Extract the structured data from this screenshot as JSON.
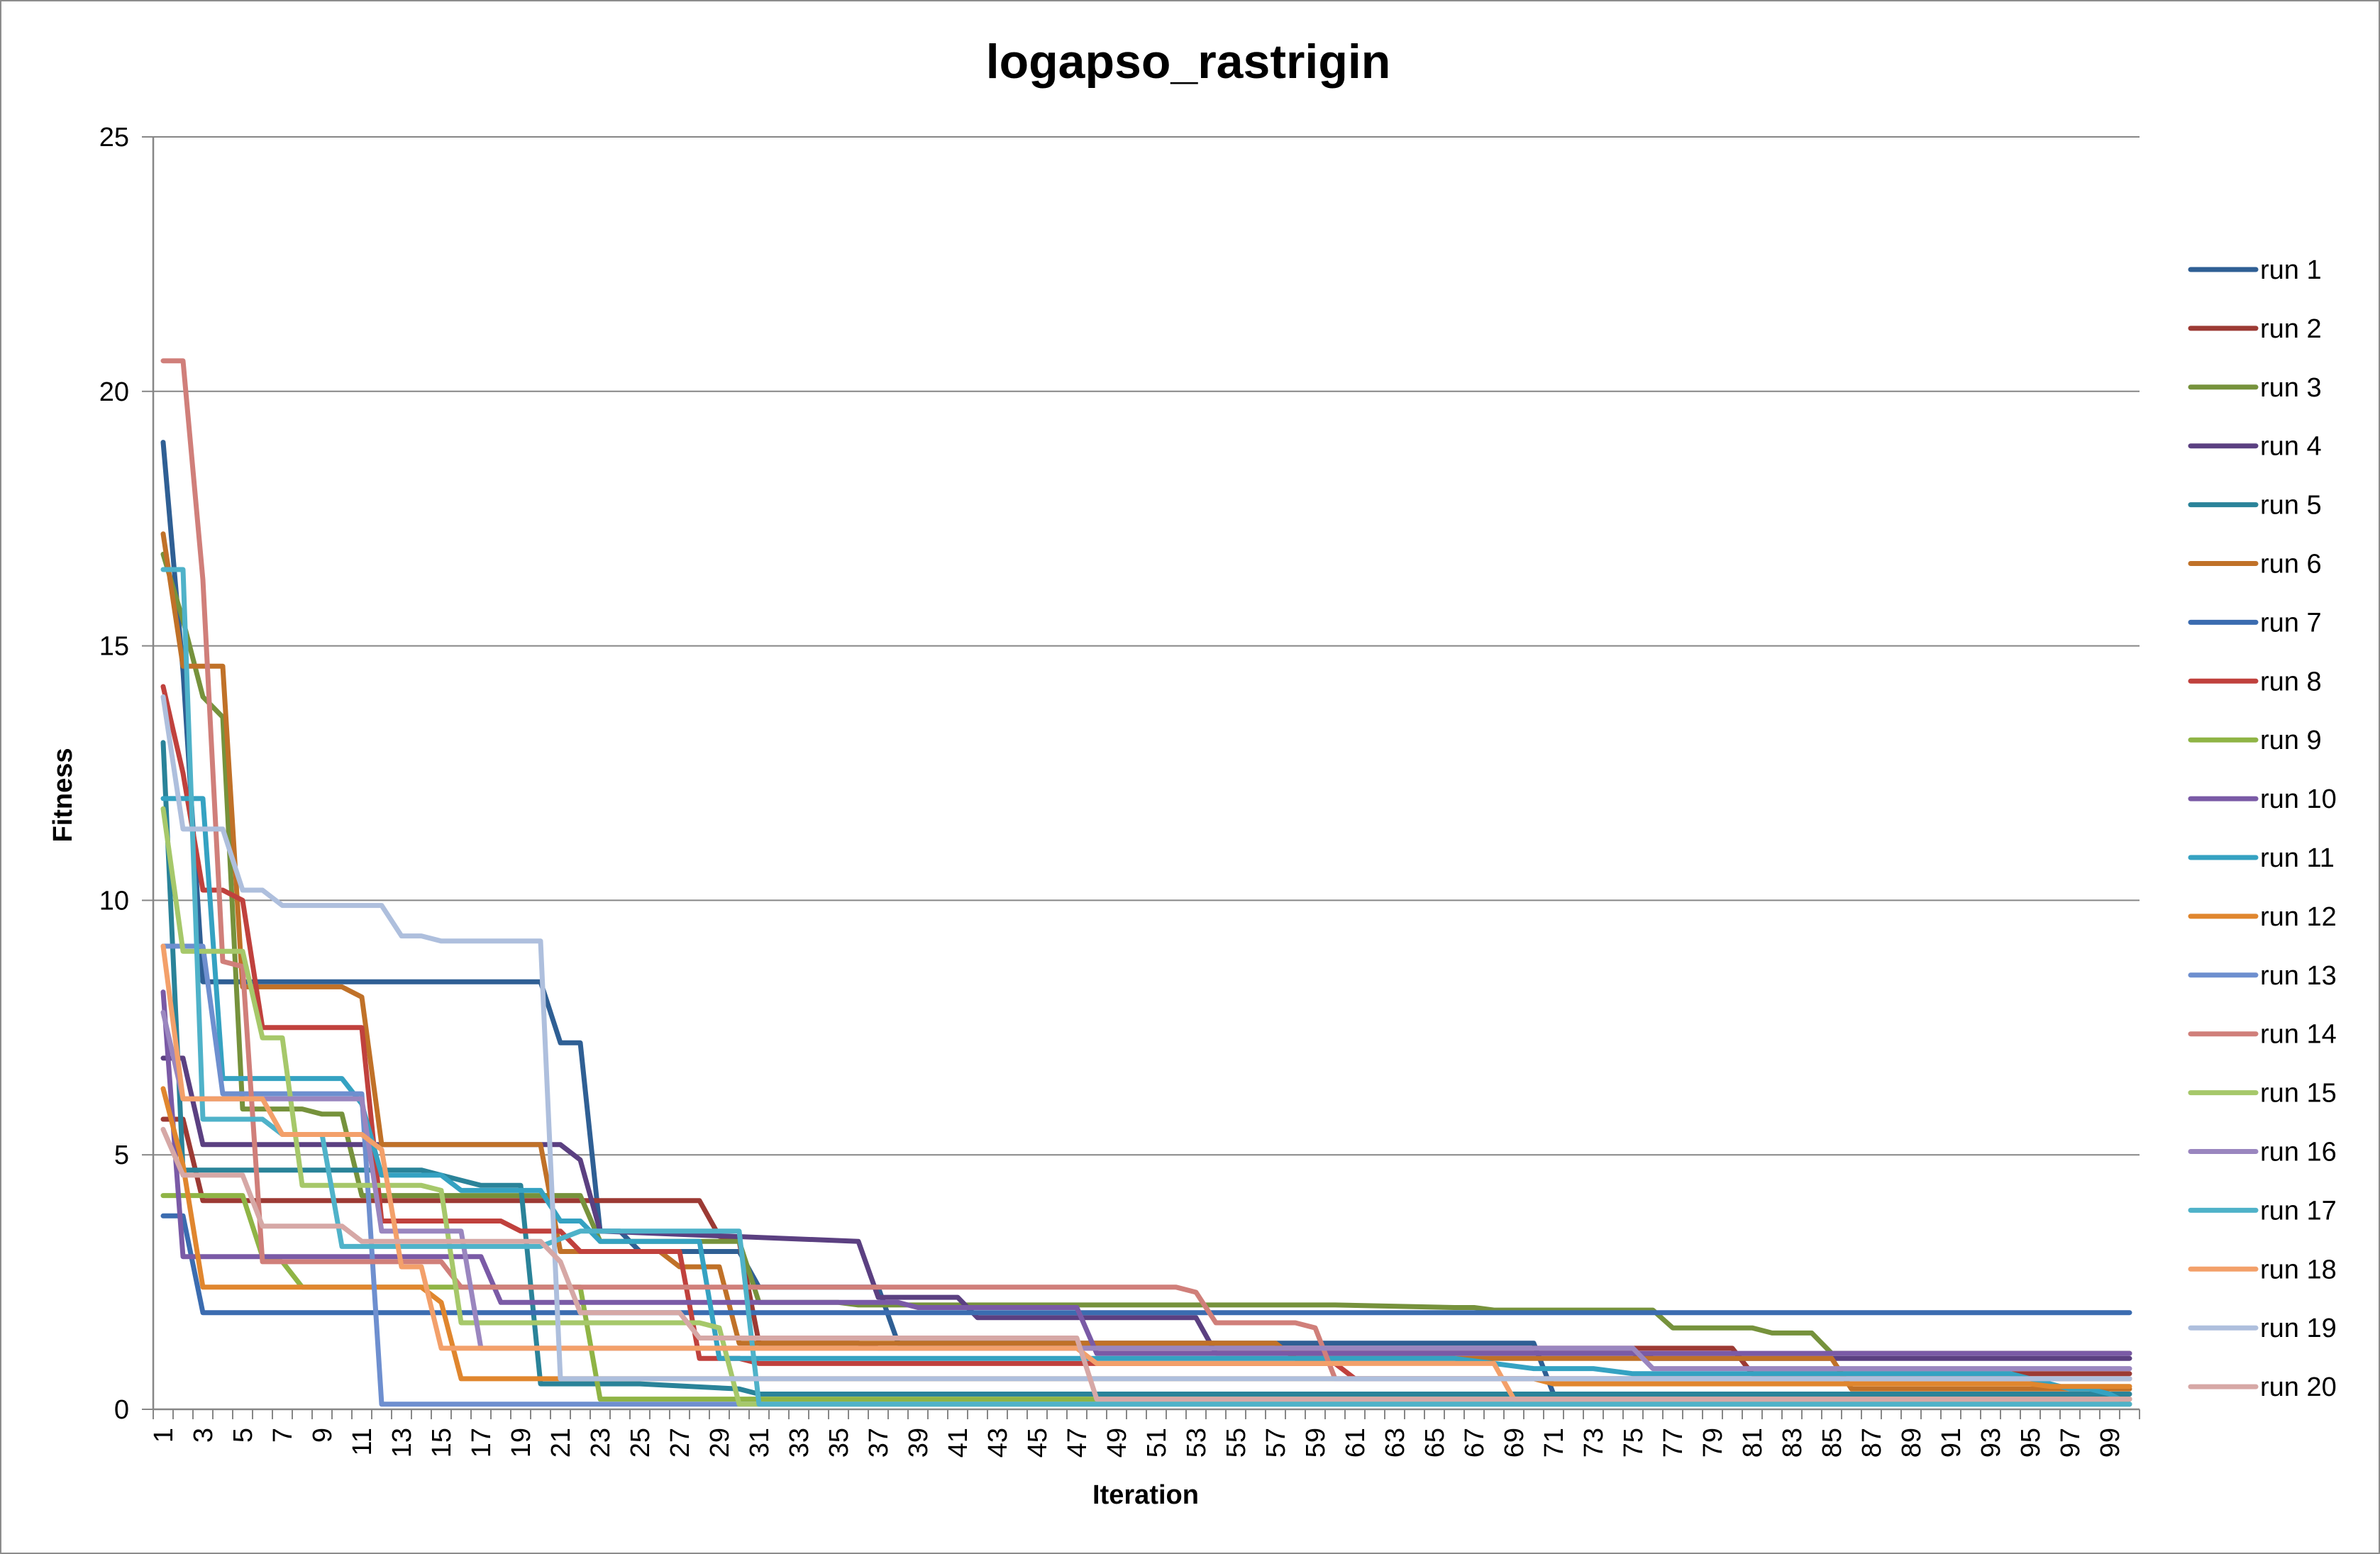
{
  "chart_data": {
    "type": "line",
    "title": "logapso_rastrigin",
    "xlabel": "Iteration",
    "ylabel": "Fitness",
    "ylim": [
      0,
      25
    ],
    "y_ticks": [
      "0",
      "5",
      "10",
      "15",
      "20",
      "25"
    ],
    "x_range": [
      1,
      100
    ],
    "x_tick_labels": [
      "1",
      "3",
      "5",
      "7",
      "9",
      "11",
      "13",
      "15",
      "17",
      "19",
      "21",
      "23",
      "25",
      "27",
      "29",
      "31",
      "33",
      "35",
      "37",
      "39",
      "41",
      "43",
      "45",
      "47",
      "49",
      "51",
      "53",
      "55",
      "57",
      "59",
      "61",
      "63",
      "65",
      "67",
      "69",
      "71",
      "73",
      "75",
      "77",
      "79",
      "81",
      "83",
      "85",
      "87",
      "89",
      "91",
      "93",
      "95",
      "97",
      "99"
    ],
    "grid": "horizontal",
    "legend_position": "right",
    "series": [
      {
        "name": "run 1",
        "color": "#2f5f94",
        "points": [
          [
            1,
            19.0
          ],
          [
            2,
            14.5
          ],
          [
            3,
            8.4
          ],
          [
            20,
            8.4
          ],
          [
            21,
            7.2
          ],
          [
            22,
            7.2
          ],
          [
            23,
            3.5
          ],
          [
            24,
            3.5
          ],
          [
            25,
            3.1
          ],
          [
            30,
            3.1
          ],
          [
            31,
            2.4
          ],
          [
            37,
            2.4
          ],
          [
            38,
            1.3
          ],
          [
            70,
            1.3
          ],
          [
            71,
            0.3
          ],
          [
            100,
            0.2
          ]
        ]
      },
      {
        "name": "run 2",
        "color": "#9c3a34",
        "points": [
          [
            1,
            5.7
          ],
          [
            2,
            5.7
          ],
          [
            3,
            4.1
          ],
          [
            28,
            4.1
          ],
          [
            29,
            3.4
          ],
          [
            30,
            3.3
          ],
          [
            31,
            1.3
          ],
          [
            36,
            1.3
          ],
          [
            37,
            1.2
          ],
          [
            80,
            1.2
          ],
          [
            81,
            0.7
          ],
          [
            100,
            0.7
          ]
        ]
      },
      {
        "name": "run 3",
        "color": "#76923c",
        "points": [
          [
            1,
            16.8
          ],
          [
            2,
            15.5
          ],
          [
            3,
            14.0
          ],
          [
            4,
            13.6
          ],
          [
            5,
            5.9
          ],
          [
            8,
            5.9
          ],
          [
            9,
            5.8
          ],
          [
            10,
            5.8
          ],
          [
            11,
            4.2
          ],
          [
            22,
            4.2
          ],
          [
            23,
            3.3
          ],
          [
            30,
            3.3
          ],
          [
            31,
            2.1
          ],
          [
            35,
            2.1
          ],
          [
            36,
            2.05
          ],
          [
            60,
            2.05
          ],
          [
            66,
            2.0
          ],
          [
            67,
            2.0
          ],
          [
            68,
            1.95
          ],
          [
            76,
            1.95
          ],
          [
            77,
            1.6
          ],
          [
            81,
            1.6
          ],
          [
            82,
            1.5
          ],
          [
            84,
            1.5
          ],
          [
            85,
            1.1
          ],
          [
            100,
            1.1
          ]
        ]
      },
      {
        "name": "run 4",
        "color": "#5b4081",
        "points": [
          [
            1,
            6.9
          ],
          [
            2,
            6.9
          ],
          [
            3,
            5.2
          ],
          [
            21,
            5.2
          ],
          [
            22,
            4.9
          ],
          [
            23,
            3.5
          ],
          [
            36,
            3.3
          ],
          [
            37,
            2.2
          ],
          [
            41,
            2.2
          ],
          [
            42,
            1.8
          ],
          [
            53,
            1.8
          ],
          [
            54,
            1.1
          ],
          [
            75,
            1.1
          ],
          [
            76,
            1.0
          ],
          [
            100,
            1.0
          ]
        ]
      },
      {
        "name": "run 5",
        "color": "#2a8399",
        "points": [
          [
            1,
            13.1
          ],
          [
            2,
            4.7
          ],
          [
            14,
            4.7
          ],
          [
            16,
            4.5
          ],
          [
            17,
            4.4
          ],
          [
            19,
            4.4
          ],
          [
            20,
            0.5
          ],
          [
            25,
            0.5
          ],
          [
            30,
            0.4
          ],
          [
            31,
            0.3
          ],
          [
            100,
            0.3
          ]
        ]
      },
      {
        "name": "run 6",
        "color": "#c07128",
        "points": [
          [
            1,
            17.2
          ],
          [
            2,
            14.6
          ],
          [
            4,
            14.6
          ],
          [
            5,
            8.3
          ],
          [
            10,
            8.3
          ],
          [
            11,
            8.1
          ],
          [
            12,
            5.2
          ],
          [
            19,
            5.2
          ],
          [
            20,
            5.2
          ],
          [
            21,
            3.1
          ],
          [
            26,
            3.1
          ],
          [
            27,
            2.8
          ],
          [
            29,
            2.8
          ],
          [
            30,
            1.3
          ],
          [
            57,
            1.3
          ],
          [
            58,
            1.0
          ],
          [
            85,
            1.0
          ],
          [
            86,
            0.4
          ],
          [
            100,
            0.4
          ]
        ]
      },
      {
        "name": "run 7",
        "color": "#3b6cb0",
        "points": [
          [
            1,
            3.8
          ],
          [
            2,
            3.8
          ],
          [
            3,
            1.9
          ],
          [
            100,
            1.9
          ]
        ]
      },
      {
        "name": "run 8",
        "color": "#c0413d",
        "points": [
          [
            1,
            14.2
          ],
          [
            2,
            12.5
          ],
          [
            3,
            10.2
          ],
          [
            4,
            10.2
          ],
          [
            5,
            10.0
          ],
          [
            6,
            7.5
          ],
          [
            10,
            7.5
          ],
          [
            11,
            7.5
          ],
          [
            12,
            3.7
          ],
          [
            18,
            3.7
          ],
          [
            19,
            3.5
          ],
          [
            21,
            3.5
          ],
          [
            22,
            3.1
          ],
          [
            27,
            3.1
          ],
          [
            28,
            1.0
          ],
          [
            30,
            1.0
          ],
          [
            31,
            0.9
          ],
          [
            60,
            0.9
          ],
          [
            61,
            0.6
          ],
          [
            100,
            0.6
          ]
        ]
      },
      {
        "name": "run 9",
        "color": "#8fb445",
        "points": [
          [
            1,
            4.2
          ],
          [
            4,
            4.2
          ],
          [
            5,
            4.2
          ],
          [
            6,
            3.0
          ],
          [
            7,
            2.9
          ],
          [
            8,
            2.4
          ],
          [
            22,
            2.4
          ],
          [
            23,
            0.2
          ],
          [
            100,
            0.2
          ]
        ]
      },
      {
        "name": "run 10",
        "color": "#7a5aa6",
        "points": [
          [
            1,
            8.2
          ],
          [
            2,
            3.0
          ],
          [
            17,
            3.0
          ],
          [
            18,
            2.1
          ],
          [
            38,
            2.1
          ],
          [
            39,
            2.0
          ],
          [
            47,
            2.0
          ],
          [
            48,
            1.1
          ],
          [
            100,
            1.1
          ]
        ]
      },
      {
        "name": "run 11",
        "color": "#35a2c2",
        "points": [
          [
            1,
            12.0
          ],
          [
            3,
            12.0
          ],
          [
            4,
            6.5
          ],
          [
            10,
            6.5
          ],
          [
            11,
            6.0
          ],
          [
            12,
            4.6
          ],
          [
            15,
            4.6
          ],
          [
            16,
            4.3
          ],
          [
            19,
            4.3
          ],
          [
            20,
            4.3
          ],
          [
            21,
            3.7
          ],
          [
            22,
            3.7
          ],
          [
            23,
            3.3
          ],
          [
            28,
            3.3
          ],
          [
            29,
            1.0
          ],
          [
            66,
            1.0
          ],
          [
            68,
            0.9
          ],
          [
            70,
            0.8
          ],
          [
            73,
            0.8
          ],
          [
            75,
            0.7
          ],
          [
            94,
            0.7
          ],
          [
            97,
            0.4
          ],
          [
            98,
            0.4
          ],
          [
            99,
            0.3
          ],
          [
            100,
            0.1
          ]
        ]
      },
      {
        "name": "run 12",
        "color": "#e0862e",
        "points": [
          [
            1,
            6.3
          ],
          [
            2,
            4.8
          ],
          [
            3,
            2.4
          ],
          [
            14,
            2.4
          ],
          [
            15,
            2.1
          ],
          [
            16,
            0.6
          ],
          [
            70,
            0.6
          ],
          [
            71,
            0.5
          ],
          [
            95,
            0.5
          ],
          [
            96,
            0.45
          ],
          [
            100,
            0.45
          ]
        ]
      },
      {
        "name": "run 13",
        "color": "#6e8fcf",
        "points": [
          [
            1,
            9.1
          ],
          [
            3,
            9.1
          ],
          [
            4,
            6.2
          ],
          [
            11,
            6.2
          ],
          [
            12,
            0.1
          ],
          [
            100,
            0.1
          ]
        ]
      },
      {
        "name": "run 14",
        "color": "#d07f7a",
        "points": [
          [
            1,
            20.6
          ],
          [
            2,
            20.6
          ],
          [
            3,
            16.3
          ],
          [
            4,
            8.8
          ],
          [
            5,
            8.7
          ],
          [
            6,
            2.9
          ],
          [
            14,
            2.9
          ],
          [
            15,
            2.9
          ],
          [
            16,
            2.4
          ],
          [
            52,
            2.4
          ],
          [
            53,
            2.3
          ],
          [
            54,
            1.7
          ],
          [
            58,
            1.7
          ],
          [
            59,
            1.6
          ],
          [
            60,
            0.6
          ],
          [
            100,
            0.6
          ]
        ]
      },
      {
        "name": "run 15",
        "color": "#a6c86a",
        "points": [
          [
            1,
            11.8
          ],
          [
            2,
            9.0
          ],
          [
            5,
            9.0
          ],
          [
            6,
            7.3
          ],
          [
            7,
            7.3
          ],
          [
            8,
            4.4
          ],
          [
            14,
            4.4
          ],
          [
            15,
            4.3
          ],
          [
            16,
            1.7
          ],
          [
            28,
            1.7
          ],
          [
            29,
            1.6
          ],
          [
            30,
            0.1
          ],
          [
            100,
            0.1
          ]
        ]
      },
      {
        "name": "run 16",
        "color": "#9a86bf",
        "points": [
          [
            1,
            7.8
          ],
          [
            2,
            6.1
          ],
          [
            11,
            6.1
          ],
          [
            12,
            3.5
          ],
          [
            16,
            3.5
          ],
          [
            17,
            1.2
          ],
          [
            75,
            1.2
          ],
          [
            76,
            0.8
          ],
          [
            100,
            0.8
          ]
        ]
      },
      {
        "name": "run 17",
        "color": "#4fb2c9",
        "points": [
          [
            1,
            16.5
          ],
          [
            2,
            16.5
          ],
          [
            3,
            5.7
          ],
          [
            6,
            5.7
          ],
          [
            7,
            5.4
          ],
          [
            9,
            5.4
          ],
          [
            10,
            3.2
          ],
          [
            20,
            3.2
          ],
          [
            22,
            3.5
          ],
          [
            28,
            3.5
          ],
          [
            30,
            3.5
          ],
          [
            31,
            0.1
          ],
          [
            100,
            0.1
          ]
        ]
      },
      {
        "name": "run 18",
        "color": "#f3a06a",
        "points": [
          [
            1,
            9.1
          ],
          [
            2,
            6.1
          ],
          [
            6,
            6.1
          ],
          [
            7,
            5.4
          ],
          [
            11,
            5.4
          ],
          [
            12,
            5.1
          ],
          [
            13,
            2.8
          ],
          [
            14,
            2.8
          ],
          [
            15,
            1.2
          ],
          [
            47,
            1.2
          ],
          [
            48,
            0.9
          ],
          [
            68,
            0.9
          ],
          [
            69,
            0.2
          ],
          [
            100,
            0.2
          ]
        ]
      },
      {
        "name": "run 19",
        "color": "#aebfdd",
        "points": [
          [
            1,
            14.0
          ],
          [
            2,
            11.4
          ],
          [
            4,
            11.4
          ],
          [
            5,
            10.2
          ],
          [
            6,
            10.2
          ],
          [
            7,
            9.9
          ],
          [
            12,
            9.9
          ],
          [
            13,
            9.3
          ],
          [
            14,
            9.3
          ],
          [
            15,
            9.2
          ],
          [
            20,
            9.2
          ],
          [
            21,
            0.6
          ],
          [
            100,
            0.6
          ]
        ]
      },
      {
        "name": "run 20",
        "color": "#d6a8a6",
        "points": [
          [
            1,
            5.5
          ],
          [
            2,
            4.6
          ],
          [
            5,
            4.6
          ],
          [
            6,
            3.6
          ],
          [
            10,
            3.6
          ],
          [
            11,
            3.3
          ],
          [
            20,
            3.3
          ],
          [
            21,
            2.9
          ],
          [
            22,
            1.9
          ],
          [
            27,
            1.9
          ],
          [
            28,
            1.4
          ],
          [
            47,
            1.4
          ],
          [
            48,
            0.2
          ],
          [
            100,
            0.2
          ]
        ]
      }
    ]
  }
}
